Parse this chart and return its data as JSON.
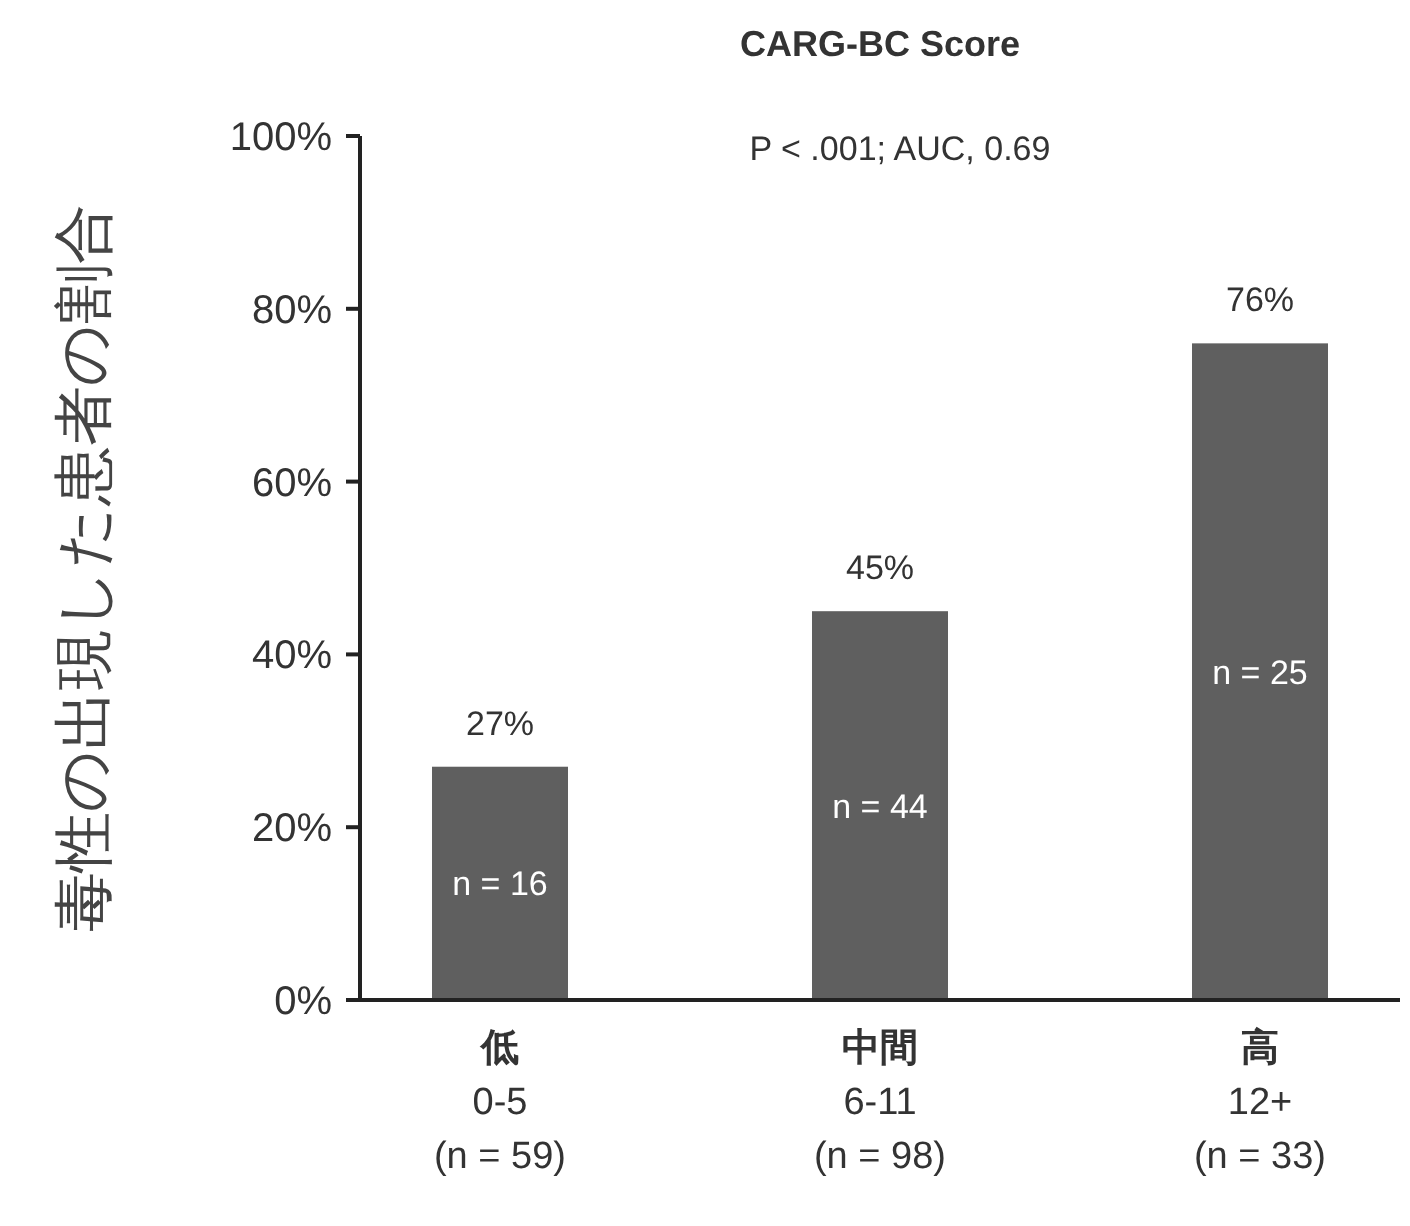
{
  "chart_data": {
    "type": "bar",
    "title": "CARG-BC Score",
    "ylabel": "毒性の出現した患者の割合",
    "categories": [
      "低\n0-5\n(n = 59)",
      "中間\n6-11\n(n = 98)",
      "高\n12+\n(n = 33)"
    ],
    "values": [
      27,
      45,
      76
    ],
    "color": "#5f5f5f",
    "value_labels": [
      "27%",
      "45%",
      "76%"
    ],
    "ylim": [
      0,
      100
    ],
    "yticks": [
      {
        "value": 0,
        "label": "0%"
      },
      {
        "value": 20,
        "label": "20%"
      },
      {
        "value": 40,
        "label": "40%"
      },
      {
        "value": 60,
        "label": "60%"
      },
      {
        "value": 80,
        "label": "80%"
      },
      {
        "value": 100,
        "label": "100%"
      }
    ],
    "annotations": [
      "P < .001; AUC, 0.69",
      "n = 16",
      "n = 44",
      "n = 25"
    ],
    "grid": false
  }
}
